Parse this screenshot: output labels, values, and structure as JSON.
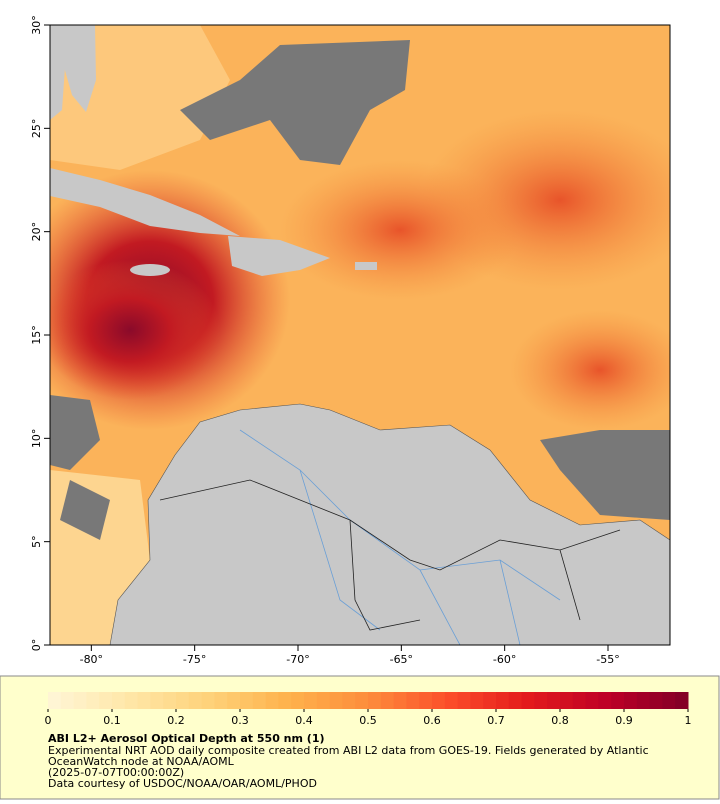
{
  "chart_data": {
    "type": "map",
    "xlim": [
      -82,
      -52
    ],
    "ylim": [
      0,
      30
    ],
    "xticks": [
      {
        "value": -80,
        "label": "-80°"
      },
      {
        "value": -75,
        "label": "-75°"
      },
      {
        "value": -70,
        "label": "-70°"
      },
      {
        "value": -65,
        "label": "-65°"
      },
      {
        "value": -60,
        "label": "-60°"
      },
      {
        "value": -55,
        "label": "-55°"
      }
    ],
    "yticks": [
      {
        "value": 0,
        "label": "0°"
      },
      {
        "value": 5,
        "label": "5°"
      },
      {
        "value": 10,
        "label": "10°"
      },
      {
        "value": 15,
        "label": "15°"
      },
      {
        "value": 20,
        "label": "20°"
      },
      {
        "value": 25,
        "label": "25°"
      },
      {
        "value": 30,
        "label": "30°"
      }
    ],
    "colorbar": {
      "lim": [
        0,
        1
      ],
      "ticks": [
        0,
        0.1,
        0.2,
        0.3,
        0.4,
        0.5,
        0.6,
        0.7,
        0.8,
        0.9,
        1
      ],
      "colors": [
        "#fff6d8",
        "#ffe7a8",
        "#fed27a",
        "#feb24c",
        "#fd8d3c",
        "#fc4e2a",
        "#e31a1c",
        "#bd0026",
        "#800026"
      ]
    },
    "title": "ABI L2+ Aerosol Optical Depth at 550 nm (1)",
    "notes": [
      "Experimental NRT AOD daily composite created from ABI L2 data from GOES-19. Fields generated by Atlantic",
      "OceanWatch node at NOAA/AOML",
      "(2025-07-07T00:00:00Z)",
      "Data courtesy of USDOC/NOAA/OAR/AOML/PHOD"
    ]
  }
}
